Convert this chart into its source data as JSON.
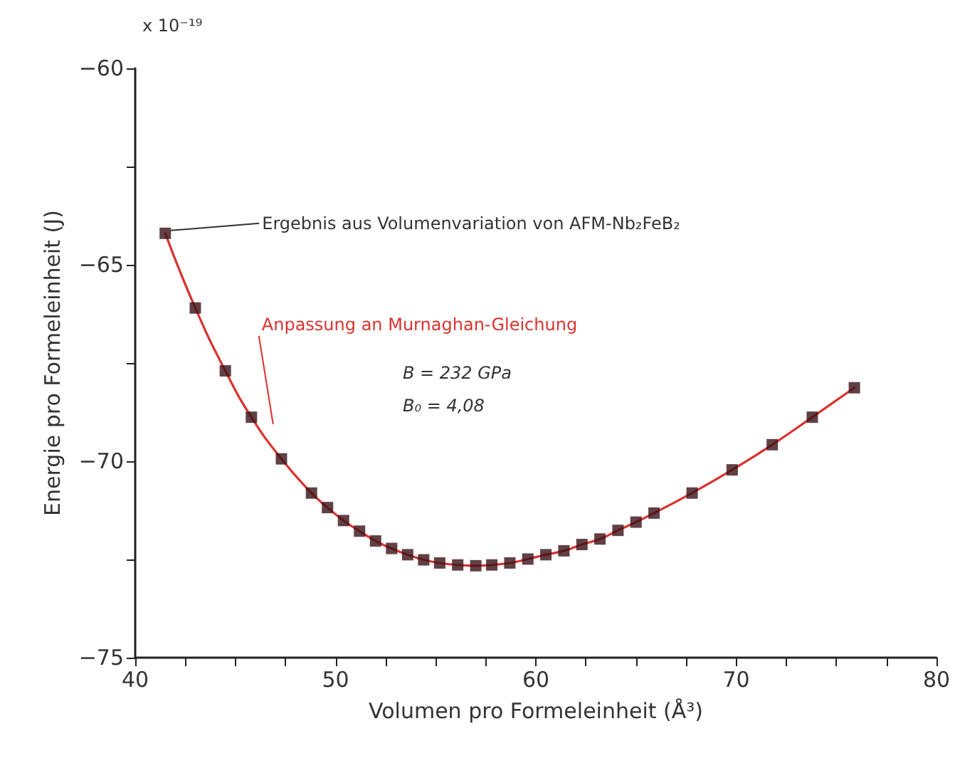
{
  "chart_data": {
    "type": "scatter",
    "xlabel": "Volumen pro Formeleinheit (Å³)",
    "ylabel": "Energie pro Formeleinheit (J)",
    "xlim": [
      40,
      80
    ],
    "xticks": [
      40,
      {
        "value": 42.5,
        "label": null
      },
      {
        "value": 45,
        "label": null
      },
      {
        "value": 47.5,
        "label": null
      },
      50,
      {
        "value": 52.5,
        "label": null
      },
      {
        "value": 55,
        "label": null
      },
      {
        "value": 57.5,
        "label": null
      },
      60,
      {
        "value": 62.5,
        "label": null
      },
      {
        "value": 65,
        "label": null
      },
      {
        "value": 67.5,
        "label": null
      },
      70,
      {
        "value": 72.5,
        "label": null
      },
      {
        "value": 75,
        "label": null
      },
      {
        "value": 77.5,
        "label": null
      },
      80
    ],
    "ylim": [
      -75,
      -60
    ],
    "yticks": [
      -75,
      {
        "value": -72.5,
        "label": null
      },
      -70,
      {
        "value": -67.5,
        "label": null
      },
      -65,
      {
        "value": -62.5,
        "label": null
      },
      -60
    ],
    "grid": false,
    "x": [
      41.5,
      43.0,
      44.5,
      45.8,
      47.3,
      48.8,
      49.6,
      50.4,
      51.2,
      52.0,
      52.8,
      53.6,
      54.4,
      55.2,
      56.1,
      57.0,
      57.8,
      58.7,
      59.6,
      60.5,
      61.4,
      62.3,
      63.2,
      64.1,
      65.0,
      65.9,
      67.8,
      69.8,
      71.8,
      73.8,
      75.9
    ],
    "series": [
      {
        "type": "line",
        "color": "#d9332e",
        "marker": "none",
        "values": [
          -64.2,
          -66.1,
          -67.7,
          -68.88,
          -69.94,
          -70.81,
          -71.18,
          -71.51,
          -71.78,
          -72.03,
          -72.22,
          -72.38,
          -72.51,
          -72.59,
          -72.64,
          -72.66,
          -72.64,
          -72.59,
          -72.49,
          -72.38,
          -72.28,
          -72.12,
          -71.98,
          -71.76,
          -71.55,
          -71.32,
          -70.81,
          -70.22,
          -69.58,
          -68.88,
          -68.13
        ]
      },
      {
        "color": "#3a1216",
        "marker": "square",
        "values": [
          -64.2,
          -66.1,
          -67.7,
          -68.88,
          -69.94,
          -70.81,
          -71.18,
          -71.51,
          -71.78,
          -72.03,
          -72.22,
          -72.38,
          -72.51,
          -72.59,
          -72.64,
          -72.66,
          -72.64,
          -72.59,
          -72.49,
          -72.38,
          -72.28,
          -72.12,
          -71.98,
          -71.76,
          -71.55,
          -71.32,
          -70.81,
          -70.22,
          -69.58,
          -68.88,
          -68.13
        ]
      }
    ],
    "annotations": [
      {
        "text": "Ergebnis aus Volumenvariation von AFM-Nb₂FeB₂",
        "x": 41.5,
        "y": -64.2
      },
      {
        "text": "Anpassung an Murnaghan-Gleichung",
        "x": 46.6,
        "y": -69.13
      },
      "B = 232 GPa",
      "B₀ = 4,08",
      "x 10⁻¹⁹"
    ]
  }
}
